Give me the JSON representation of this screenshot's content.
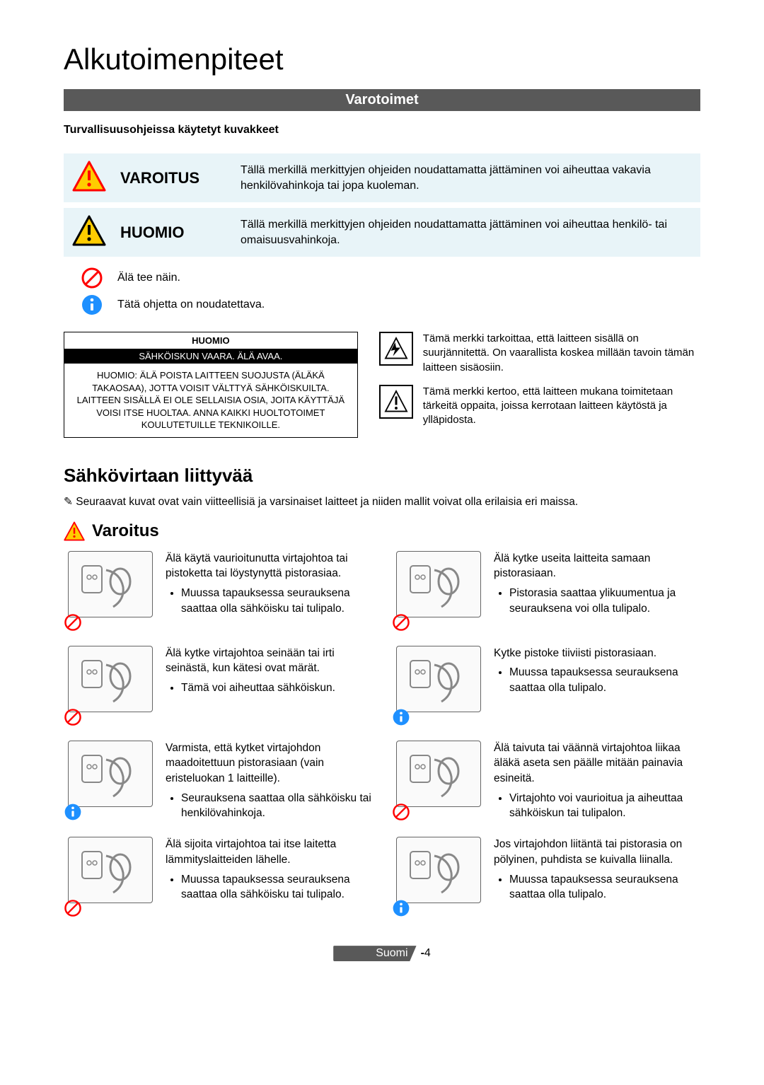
{
  "page_title": "Alkutoimenpiteet",
  "banner": "Varotoimet",
  "subhead": "Turvallisuusohjeissa käytetyt kuvakkeet",
  "icon_rows": [
    {
      "label": "VAROITUS",
      "desc": "Tällä merkillä merkittyjen ohjeiden noudattamatta jättäminen voi aiheuttaa vakavia henkilövahinkoja tai jopa kuoleman.",
      "fill": "#ff0000",
      "stroke": "#ffcc00"
    },
    {
      "label": "HUOMIO",
      "desc": "Tällä merkillä merkittyjen ohjeiden noudattamatta jättäminen voi aiheuttaa henkilö- tai omaisuusvahinkoja.",
      "fill": "#ffcc00",
      "stroke": "#000000"
    }
  ],
  "small_rows": [
    {
      "kind": "prohibit",
      "text": "Älä tee näin."
    },
    {
      "kind": "info",
      "text": "Tätä ohjetta on noudatettava."
    }
  ],
  "caution_box": {
    "title": "HUOMIO",
    "bar": "SÄHKÖISKUN VAARA. ÄLÄ AVAA.",
    "body": "HUOMIO: ÄLÄ POISTA LAITTEEN SUOJUSTA (ÄLÄKÄ TAKAOSAA), JOTTA VOISIT VÄLTTYÄ SÄHKÖISKUILTA. LAITTEEN SISÄLLÄ EI OLE SELLAISIA OSIA, JOITA KÄYTTÄJÄ VOISI ITSE HUOLTAA. ANNA KAIKKI HUOLTOTOIMET KOULUTETUILLE TEKNIKOILLE."
  },
  "sym_items": [
    {
      "glyph": "bolt",
      "text": "Tämä merkki tarkoittaa, että laitteen sisällä on suurjännitettä. On vaarallista koskea millään tavoin tämän laitteen sisäosiin."
    },
    {
      "glyph": "excl",
      "text": "Tämä merkki kertoo, että laitteen mukana toimitetaan tärkeitä oppaita, joissa kerrotaan laitteen käytöstä ja ylläpidosta."
    }
  ],
  "section_title": "Sähkövirtaan liittyvää",
  "note": "Seuraavat kuvat ovat vain viitteellisiä ja varsinaiset laitteet ja niiden mallit voivat olla erilaisia eri maissa.",
  "varo_heading": "Varoitus",
  "items": [
    {
      "badge": "prohibit",
      "main": "Älä käytä vaurioitunutta virtajohtoa tai pistoketta tai löystynyttä pistorasiaa.",
      "bullet": "Muussa tapauksessa seurauksena saattaa olla sähköisku tai tulipalo."
    },
    {
      "badge": "prohibit",
      "main": "Älä kytke useita laitteita samaan pistorasiaan.",
      "bullet": "Pistorasia saattaa ylikuumentua ja seurauksena voi olla tulipalo."
    },
    {
      "badge": "prohibit",
      "main": "Älä kytke virtajohtoa seinään tai irti seinästä, kun kätesi ovat märät.",
      "bullet": "Tämä voi aiheuttaa sähköiskun."
    },
    {
      "badge": "info",
      "main": "Kytke pistoke tiiviisti pistorasiaan.",
      "bullet": "Muussa tapauksessa seurauksena saattaa olla tulipalo."
    },
    {
      "badge": "info",
      "main": "Varmista, että kytket virtajohdon maadoitettuun pistorasiaan (vain eristeluokan 1 laitteille).",
      "bullet": "Seurauksena saattaa olla sähköisku tai henkilövahinkoja."
    },
    {
      "badge": "prohibit",
      "main": "Älä taivuta tai väännä virtajohtoa liikaa äläkä aseta sen päälle mitään painavia esineitä.",
      "bullet": "Virtajohto voi vaurioitua ja aiheuttaa sähköiskun tai tulipalon."
    },
    {
      "badge": "prohibit",
      "main": "Älä sijoita virtajohtoa tai itse laitetta lämmityslaitteiden lähelle.",
      "bullet": "Muussa tapauksessa seurauksena saattaa olla sähköisku tai tulipalo."
    },
    {
      "badge": "info",
      "main": "Jos virtajohdon liitäntä tai pistorasia on pölyinen, puhdista se kuivalla liinalla.",
      "bullet": "Muussa tapauksessa seurauksena saattaa olla tulipalo."
    }
  ],
  "footer_lang": "Suomi",
  "footer_page": "4",
  "colors": {
    "row_bg": "#e8f4f8",
    "banner_bg": "#595959",
    "prohibit": "#ff0000",
    "info": "#1e90ff",
    "warning_tri_fill": "#ffcc00",
    "warning_tri_stroke": "#ff0000"
  }
}
